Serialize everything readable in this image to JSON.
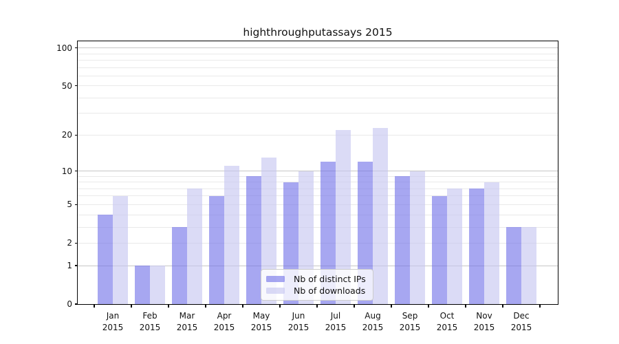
{
  "chart_data": {
    "type": "bar",
    "title": "highthroughputassays 2015",
    "categories": [
      "Jan",
      "Feb",
      "Mar",
      "Apr",
      "May",
      "Jun",
      "Jul",
      "Aug",
      "Sep",
      "Oct",
      "Nov",
      "Dec"
    ],
    "x_tick_year": "2015",
    "series": [
      {
        "name": "Nb of distinct IPs",
        "color": "rgba(113,113,233,0.62)",
        "values": [
          4,
          1,
          3,
          6,
          9,
          8,
          12,
          12,
          9,
          6,
          7,
          3
        ]
      },
      {
        "name": "Nb of downloads",
        "color": "rgba(197,197,240,0.62)",
        "values": [
          6,
          1,
          7,
          11,
          13,
          10,
          22,
          23,
          10,
          7,
          8,
          3
        ]
      }
    ],
    "y_scale": "log1p",
    "ylim": [
      0,
      113
    ],
    "y_ticks": [
      0,
      1,
      2,
      5,
      10,
      20,
      50,
      100
    ],
    "y_gridlines_major": [
      1,
      10,
      100
    ],
    "y_gridlines_minor": [
      2,
      3,
      4,
      5,
      6,
      7,
      8,
      9,
      20,
      30,
      40,
      50,
      60,
      70,
      80,
      90
    ],
    "grid": "on",
    "legend_position": "lower center",
    "colors": {
      "grid_major": "#c6c6c6",
      "grid_minor": "#e9e9e9",
      "axis": "#000000",
      "text": "#111111"
    }
  }
}
